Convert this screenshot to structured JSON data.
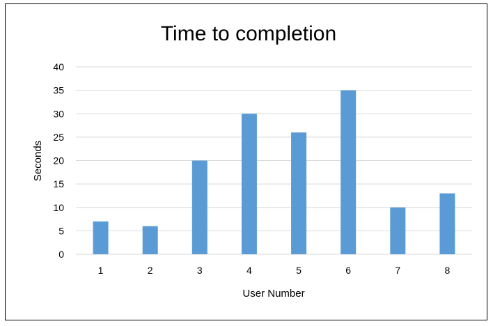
{
  "chart_data": {
    "type": "bar",
    "title": "Time to completion",
    "xlabel": "User Number",
    "ylabel": "Seconds",
    "categories": [
      "1",
      "2",
      "3",
      "4",
      "5",
      "6",
      "7",
      "8"
    ],
    "values": [
      7,
      6,
      20,
      30,
      26,
      35,
      10,
      13
    ],
    "ylim": [
      0,
      40
    ],
    "yticks": [
      0,
      5,
      10,
      15,
      20,
      25,
      30,
      35,
      40
    ],
    "grid": true,
    "bar_color": "#5B9BD5",
    "grid_color": "#D9D9D9"
  }
}
